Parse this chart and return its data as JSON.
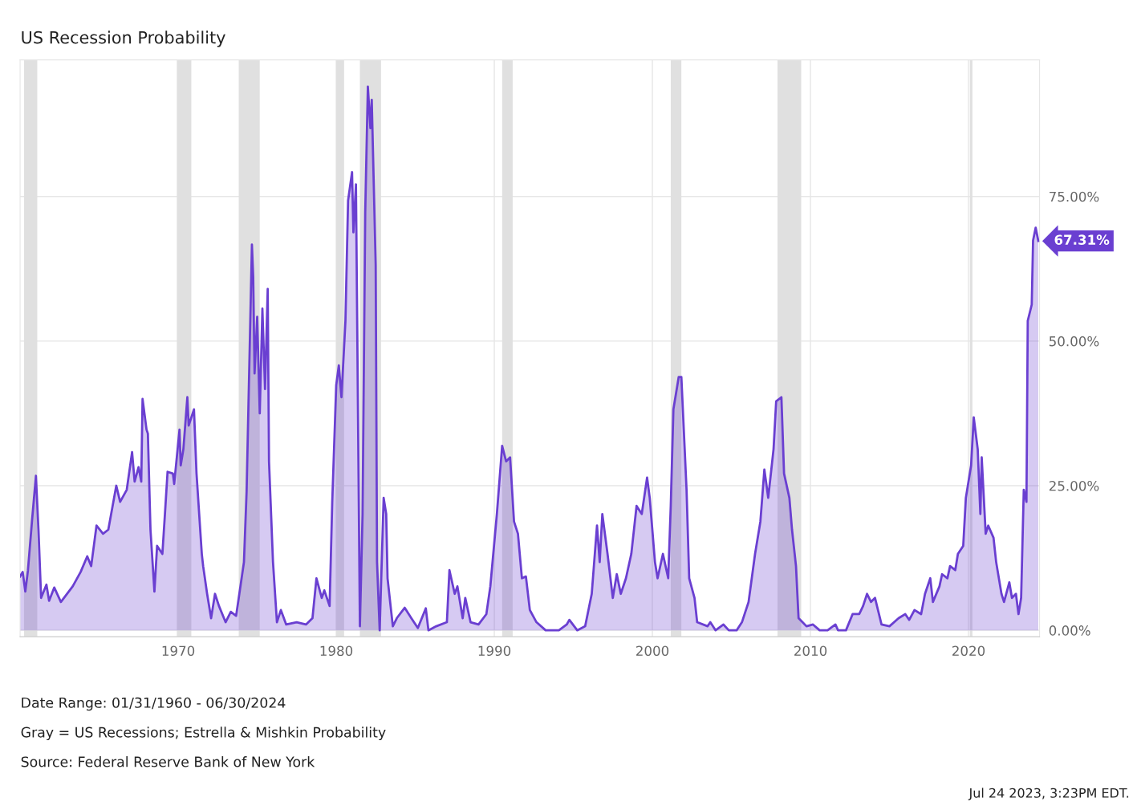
{
  "chart_data": {
    "type": "area",
    "title": "US Recession Probability",
    "x": [
      "1960-01",
      "1960-03",
      "1960-05",
      "1960-07",
      "1960-10",
      "1961-01",
      "1961-03",
      "1961-05",
      "1961-09",
      "1961-11",
      "1962-03",
      "1962-08",
      "1963-05",
      "1963-11",
      "1964-04",
      "1964-07",
      "1964-11",
      "1965-04",
      "1965-08",
      "1966-02",
      "1966-05",
      "1966-10",
      "1967-02",
      "1967-04",
      "1967-07",
      "1967-09",
      "1967-10",
      "1968-01",
      "1968-02",
      "1968-04",
      "1968-07",
      "1968-09",
      "1969-01",
      "1969-03",
      "1969-05",
      "1969-09",
      "1969-10",
      "1970-02",
      "1970-03",
      "1970-05",
      "1970-08",
      "1970-09",
      "1971-01",
      "1971-03",
      "1971-07",
      "1971-08",
      "1971-11",
      "1972-02",
      "1972-05",
      "1972-08",
      "1973-01",
      "1973-05",
      "1973-09",
      "1973-11",
      "1974-03",
      "1974-05",
      "1974-07",
      "1974-09",
      "1974-10",
      "1974-11",
      "1975-01",
      "1975-03",
      "1975-05",
      "1975-07",
      "1975-09",
      "1975-10",
      "1976-01",
      "1976-04",
      "1976-07",
      "1976-11",
      "1977-07",
      "1978-02",
      "1978-07",
      "1978-10",
      "1979-02",
      "1979-04",
      "1979-08",
      "1979-10",
      "1980-01",
      "1980-03",
      "1980-05",
      "1980-08",
      "1980-10",
      "1981-01",
      "1981-02",
      "1981-04",
      "1981-07",
      "1981-09",
      "1981-11",
      "1982-01",
      "1982-03",
      "1982-04",
      "1982-07",
      "1982-08",
      "1982-10",
      "1983-01",
      "1983-03",
      "1983-04",
      "1983-08",
      "1983-11",
      "1984-05",
      "1984-10",
      "1985-03",
      "1985-09",
      "1985-11",
      "1986-05",
      "1987-01",
      "1987-03",
      "1987-07",
      "1987-09",
      "1988-01",
      "1988-03",
      "1988-07",
      "1989-01",
      "1989-07",
      "1989-10",
      "1990-03",
      "1990-07",
      "1990-10",
      "1991-01",
      "1991-04",
      "1991-07",
      "1991-10",
      "1992-01",
      "1992-04",
      "1992-09",
      "1993-04",
      "1994-02",
      "1994-08",
      "1994-10",
      "1995-04",
      "1995-10",
      "1996-03",
      "1996-07",
      "1996-09",
      "1996-11",
      "1997-03",
      "1997-07",
      "1997-10",
      "1998-01",
      "1998-05",
      "1998-09",
      "1999-01",
      "1999-05",
      "1999-09",
      "1999-11",
      "2000-03",
      "2000-05",
      "2000-09",
      "2001-01",
      "2001-03",
      "2001-05",
      "2001-09",
      "2001-11",
      "2002-03",
      "2002-05",
      "2002-09",
      "2002-11",
      "2003-07",
      "2003-09",
      "2004-01",
      "2004-07",
      "2004-11",
      "2005-05",
      "2005-09",
      "2006-02",
      "2006-07",
      "2006-11",
      "2007-02",
      "2007-05",
      "2007-09",
      "2007-11",
      "2008-03",
      "2008-05",
      "2008-09",
      "2008-11",
      "2009-02",
      "2009-04",
      "2009-07",
      "2009-10",
      "2010-03",
      "2010-08",
      "2011-02",
      "2011-08",
      "2011-10",
      "2012-04",
      "2012-09",
      "2013-02",
      "2013-05",
      "2013-08",
      "2013-11",
      "2014-02",
      "2014-07",
      "2015-01",
      "2015-08",
      "2016-01",
      "2016-04",
      "2016-08",
      "2017-01",
      "2017-04",
      "2017-08",
      "2017-10",
      "2018-03",
      "2018-05",
      "2018-09",
      "2018-11",
      "2019-03",
      "2019-05",
      "2019-09",
      "2019-11",
      "2020-03",
      "2020-05",
      "2020-08",
      "2020-10",
      "2020-11",
      "2021-02",
      "2021-04",
      "2021-08",
      "2021-10",
      "2022-02",
      "2022-04",
      "2022-08",
      "2022-10",
      "2023-01",
      "2023-03",
      "2023-05",
      "2023-07",
      "2023-09",
      "2023-10",
      "2024-01",
      "2024-02",
      "2024-04",
      "2024-06"
    ],
    "series": [
      {
        "color": "#6a3fd1",
        "values": [
          9.3,
          10.1,
          6.7,
          10.4,
          18.8,
          26.7,
          17.4,
          5.6,
          7.9,
          5.1,
          7.4,
          4.9,
          7.6,
          10.1,
          12.8,
          11.1,
          18.1,
          16.7,
          17.4,
          25,
          22.2,
          24.3,
          30.8,
          25.7,
          28.2,
          25.7,
          40,
          34.7,
          34,
          17.4,
          6.7,
          14.6,
          13.2,
          20.1,
          27.4,
          27.1,
          25.3,
          34.7,
          28.5,
          31.3,
          40.3,
          35.4,
          38.2,
          27.1,
          13.2,
          11.1,
          6.3,
          2.1,
          6.3,
          4.2,
          1.4,
          3.2,
          2.5,
          5.6,
          11.8,
          24,
          45.1,
          66.7,
          61.1,
          44.4,
          54.2,
          37.5,
          55.6,
          41.7,
          59,
          29.2,
          11.8,
          1.4,
          3.5,
          1,
          1.4,
          1,
          2.1,
          9,
          5.6,
          6.9,
          4.2,
          22.2,
          42.4,
          45.8,
          40.3,
          53.5,
          74.3,
          79.2,
          68.8,
          77.1,
          0.7,
          20.1,
          72.2,
          94,
          86.8,
          91.7,
          63.2,
          11.8,
          0,
          22.9,
          20.1,
          9,
          0.7,
          2.1,
          3.9,
          2.1,
          0.4,
          3.8,
          0,
          0.7,
          1.4,
          10.4,
          6.3,
          7.6,
          2.1,
          5.6,
          1.4,
          1,
          2.8,
          7.6,
          20.1,
          31.9,
          29.2,
          29.9,
          18.8,
          16.7,
          9,
          9.3,
          3.5,
          1.4,
          0,
          0,
          1,
          1.8,
          0,
          0.7,
          6.3,
          18.1,
          11.8,
          20.1,
          13.2,
          5.6,
          9.7,
          6.3,
          9,
          13.2,
          21.5,
          20.1,
          26.4,
          22.9,
          11.8,
          9,
          13.2,
          9,
          21.5,
          38.2,
          43.8,
          43.8,
          24.3,
          9,
          5.6,
          1.4,
          0.7,
          1.4,
          0,
          1,
          0,
          0,
          1.4,
          4.9,
          13.2,
          18.8,
          27.8,
          22.9,
          31.3,
          39.6,
          40.3,
          27.1,
          22.9,
          17.4,
          11.1,
          2.1,
          1.4,
          0.7,
          1,
          0,
          0,
          1,
          0,
          0,
          2.8,
          2.8,
          4.2,
          6.3,
          4.9,
          5.6,
          1,
          0.7,
          2.1,
          2.8,
          1.8,
          3.5,
          2.8,
          6.3,
          9,
          4.9,
          7.6,
          9.7,
          9,
          11.1,
          10.4,
          13.2,
          14.6,
          22.9,
          28.5,
          36.8,
          31.3,
          20.1,
          29.9,
          16.7,
          18.1,
          16,
          11.8,
          6.3,
          4.9,
          8.3,
          5.6,
          6.3,
          2.8,
          5.6,
          24.3,
          22.2,
          53.5,
          56.3,
          67.4,
          69.6,
          67.31
        ]
      }
    ],
    "xlim": [
      "1960-01",
      "2024-06-30"
    ],
    "xticks": [
      {
        "value": "1970",
        "label": "1970"
      },
      {
        "value": "1980",
        "label": "1980"
      },
      {
        "value": "1990",
        "label": "1990"
      },
      {
        "value": "2000",
        "label": "2000"
      },
      {
        "value": "2010",
        "label": "2010"
      },
      {
        "value": "2020",
        "label": "2020"
      }
    ],
    "ylim": [
      -1.1,
      98.6
    ],
    "yticks": [
      {
        "value": 0,
        "label": "0.00%"
      },
      {
        "value": 25,
        "label": "25.00%"
      },
      {
        "value": 50,
        "label": "50.00%"
      },
      {
        "value": 75,
        "label": "75.00%"
      }
    ],
    "grid": true,
    "bands": [
      {
        "axis": "x",
        "from": "1960-04",
        "to": "1961-02",
        "color": "#e0e0e0"
      },
      {
        "axis": "x",
        "from": "1969-12",
        "to": "1970-11",
        "color": "#e0e0e0"
      },
      {
        "axis": "x",
        "from": "1973-11",
        "to": "1975-03",
        "color": "#e0e0e0"
      },
      {
        "axis": "x",
        "from": "1980-01",
        "to": "1980-07",
        "color": "#e0e0e0"
      },
      {
        "axis": "x",
        "from": "1981-07",
        "to": "1982-11",
        "color": "#e0e0e0"
      },
      {
        "axis": "x",
        "from": "1990-07",
        "to": "1991-03",
        "color": "#e0e0e0"
      },
      {
        "axis": "x",
        "from": "2001-03",
        "to": "2001-11",
        "color": "#e0e0e0"
      },
      {
        "axis": "x",
        "from": "2007-12",
        "to": "2009-06",
        "color": "#e0e0e0"
      },
      {
        "axis": "x",
        "from": "2020-02",
        "to": "2020-04",
        "color": "#e0e0e0"
      }
    ],
    "annotations": [
      {
        "text": "67.31%",
        "x": "2024-06",
        "y": 67.31
      },
      "Date Range: 01/31/1960 - 06/30/2024",
      "Gray = US Recessions; Estrella & Mishkin Probability",
      "Source: Federal Reserve Bank of New York",
      "Jul 24 2023, 3:23PM EDT."
    ]
  }
}
